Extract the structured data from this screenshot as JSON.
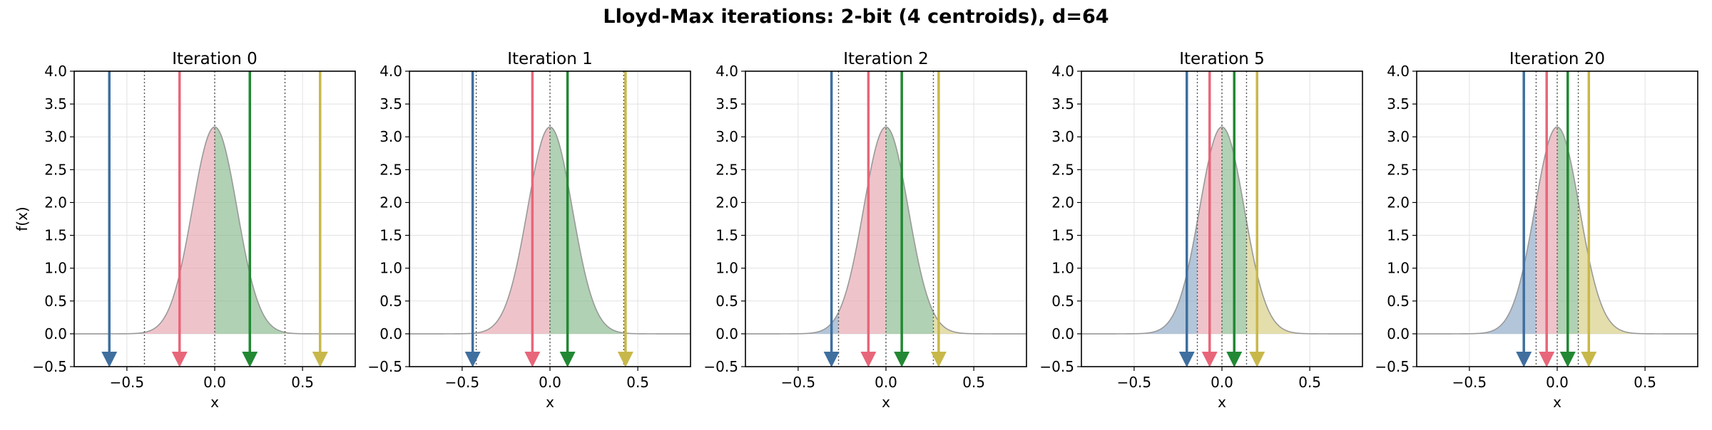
{
  "title": "Lloyd-Max iterations: 2-bit (4 centroids), d=64",
  "colors": {
    "centroids": [
      "#3f6f9f",
      "#e8667a",
      "#228833",
      "#c8b84a"
    ],
    "fills": [
      "#8aa6c4",
      "#e5a4ae",
      "#86b98a",
      "#d6cc80"
    ],
    "curve": "#999999",
    "boundary": "#555555",
    "grid": "#e2e2e2"
  },
  "chart_data": [
    {
      "type": "area",
      "title": "Iteration 0",
      "xlabel": "x",
      "ylabel": "f(x)",
      "xlim": [
        -0.8,
        0.8
      ],
      "ylim": [
        -0.5,
        4.0
      ],
      "xticks": [
        -0.5,
        0.0,
        0.5
      ],
      "xtick_labels": [
        "−0.5",
        "0.0",
        "0.5"
      ],
      "yticks": [
        -0.5,
        0.0,
        0.5,
        1.0,
        1.5,
        2.0,
        2.5,
        3.0,
        3.5,
        4.0
      ],
      "ytick_labels": [
        "−0.5",
        "0.0",
        "0.5",
        "1.0",
        "1.5",
        "2.0",
        "2.5",
        "3.0",
        "3.5",
        "4.0"
      ],
      "grid": true,
      "density": {
        "label": "f(x)",
        "peak": 3.15,
        "sigma": 0.127
      },
      "centroids": [
        -0.6,
        -0.2,
        0.2,
        0.6
      ],
      "boundaries": [
        -0.4,
        0.0,
        0.4
      ]
    },
    {
      "type": "area",
      "title": "Iteration 1",
      "xlabel": "x",
      "ylabel": "",
      "xlim": [
        -0.8,
        0.8
      ],
      "ylim": [
        -0.5,
        4.0
      ],
      "xticks": [
        -0.5,
        0.0,
        0.5
      ],
      "xtick_labels": [
        "−0.5",
        "0.0",
        "0.5"
      ],
      "yticks": [
        -0.5,
        0.0,
        0.5,
        1.0,
        1.5,
        2.0,
        2.5,
        3.0,
        3.5,
        4.0
      ],
      "ytick_labels": [
        "−0.5",
        "0.0",
        "0.5",
        "1.0",
        "1.5",
        "2.0",
        "2.5",
        "3.0",
        "3.5",
        "4.0"
      ],
      "grid": true,
      "density": {
        "label": "f(x)",
        "peak": 3.15,
        "sigma": 0.127
      },
      "centroids": [
        -0.44,
        -0.1,
        0.1,
        0.43
      ],
      "boundaries": [
        -0.42,
        0.0,
        0.42
      ]
    },
    {
      "type": "area",
      "title": "Iteration 2",
      "xlabel": "x",
      "ylabel": "",
      "xlim": [
        -0.8,
        0.8
      ],
      "ylim": [
        -0.5,
        4.0
      ],
      "xticks": [
        -0.5,
        0.0,
        0.5
      ],
      "xtick_labels": [
        "−0.5",
        "0.0",
        "0.5"
      ],
      "yticks": [
        -0.5,
        0.0,
        0.5,
        1.0,
        1.5,
        2.0,
        2.5,
        3.0,
        3.5,
        4.0
      ],
      "ytick_labels": [
        "−0.5",
        "0.0",
        "0.5",
        "1.0",
        "1.5",
        "2.0",
        "2.5",
        "3.0",
        "3.5",
        "4.0"
      ],
      "grid": true,
      "density": {
        "label": "f(x)",
        "peak": 3.15,
        "sigma": 0.127
      },
      "centroids": [
        -0.31,
        -0.1,
        0.09,
        0.3
      ],
      "boundaries": [
        -0.27,
        0.0,
        0.27
      ]
    },
    {
      "type": "area",
      "title": "Iteration 5",
      "xlabel": "x",
      "ylabel": "",
      "xlim": [
        -0.8,
        0.8
      ],
      "ylim": [
        -0.5,
        4.0
      ],
      "xticks": [
        -0.5,
        0.0,
        0.5
      ],
      "xtick_labels": [
        "−0.5",
        "0.0",
        "0.5"
      ],
      "yticks": [
        -0.5,
        0.0,
        0.5,
        1.0,
        1.5,
        2.0,
        2.5,
        3.0,
        3.5,
        4.0
      ],
      "ytick_labels": [
        "−0.5",
        "0.0",
        "0.5",
        "1.0",
        "1.5",
        "2.0",
        "2.5",
        "3.0",
        "3.5",
        "4.0"
      ],
      "grid": true,
      "density": {
        "label": "f(x)",
        "peak": 3.15,
        "sigma": 0.127
      },
      "centroids": [
        -0.2,
        -0.07,
        0.07,
        0.2
      ],
      "boundaries": [
        -0.14,
        0.0,
        0.14
      ]
    },
    {
      "type": "area",
      "title": "Iteration 20",
      "xlabel": "x",
      "ylabel": "",
      "xlim": [
        -0.8,
        0.8
      ],
      "ylim": [
        -0.5,
        4.0
      ],
      "xticks": [
        -0.5,
        0.0,
        0.5
      ],
      "xtick_labels": [
        "−0.5",
        "0.0",
        "0.5"
      ],
      "yticks": [
        -0.5,
        0.0,
        0.5,
        1.0,
        1.5,
        2.0,
        2.5,
        3.0,
        3.5,
        4.0
      ],
      "ytick_labels": [
        "−0.5",
        "0.0",
        "0.5",
        "1.0",
        "1.5",
        "2.0",
        "2.5",
        "3.0",
        "3.5",
        "4.0"
      ],
      "grid": true,
      "density": {
        "label": "f(x)",
        "peak": 3.15,
        "sigma": 0.127
      },
      "centroids": [
        -0.19,
        -0.06,
        0.06,
        0.18
      ],
      "boundaries": [
        -0.12,
        0.0,
        0.12
      ]
    }
  ]
}
